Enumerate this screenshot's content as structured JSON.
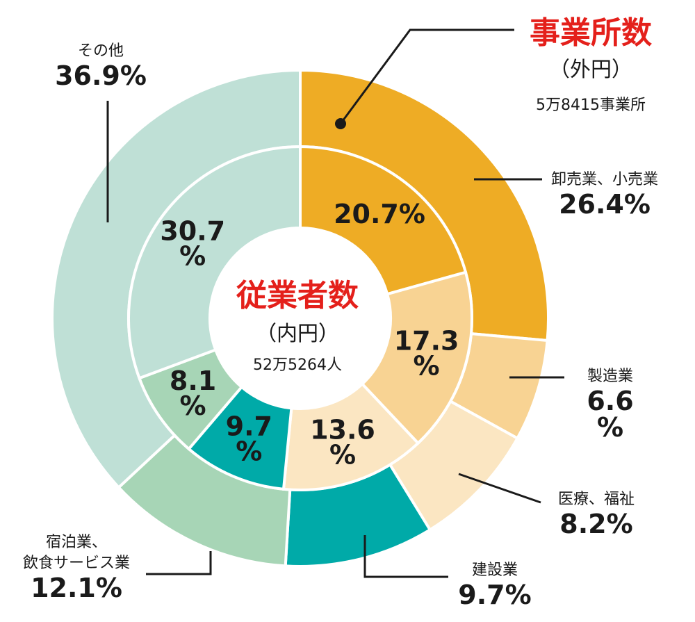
{
  "chart_data": {
    "type": "pie",
    "variant": "nested-donut",
    "outer": {
      "title": "事業所数",
      "subtitle": "（外円）",
      "total": "5万8415事業所",
      "segments": [
        {
          "name": "卸売業、小売業",
          "name_lines": [
            "卸売業、小売業"
          ],
          "value": 26.4,
          "label_lines": [
            "26.4%"
          ],
          "color": "#eeac25"
        },
        {
          "name": "製造業",
          "name_lines": [
            "製造業"
          ],
          "value": 6.6,
          "label_lines": [
            "6.6",
            "%"
          ],
          "color": "#f8d393"
        },
        {
          "name": "医療、福祉",
          "name_lines": [
            "医療、福祉"
          ],
          "value": 8.2,
          "label_lines": [
            "8.2%"
          ],
          "color": "#fbe6c2"
        },
        {
          "name": "建設業",
          "name_lines": [
            "建設業"
          ],
          "value": 9.7,
          "label_lines": [
            "9.7%"
          ],
          "color": "#00aaa8"
        },
        {
          "name": "宿泊業、飲食サービス業",
          "name_lines": [
            "宿泊業、",
            "飲食サービス業"
          ],
          "value": 12.1,
          "label_lines": [
            "12.1%"
          ],
          "color": "#a7d5b6"
        },
        {
          "name": "その他",
          "name_lines": [
            "その他"
          ],
          "value": 36.9,
          "label_lines": [
            "36.9%"
          ],
          "color": "#bfe0d6"
        }
      ]
    },
    "inner": {
      "title": "従業者数",
      "subtitle": "（内円）",
      "total": "52万5264人",
      "segments": [
        {
          "name": "卸売業、小売業",
          "value": 20.7,
          "label_lines": [
            "20.7%"
          ],
          "color": "#eeac25"
        },
        {
          "name": "製造業",
          "value": 17.3,
          "label_lines": [
            "17.3",
            "%"
          ],
          "color": "#f8d393"
        },
        {
          "name": "医療、福祉",
          "value": 13.6,
          "label_lines": [
            "13.6",
            "%"
          ],
          "color": "#fbe6c2"
        },
        {
          "name": "建設業",
          "value": 9.7,
          "label_lines": [
            "9.7",
            "%"
          ],
          "color": "#00aaa8"
        },
        {
          "name": "宿泊業、飲食サービス業",
          "value": 8.1,
          "label_lines": [
            "8.1",
            "%"
          ],
          "color": "#a7d5b6"
        },
        {
          "name": "その他",
          "value": 30.7,
          "label_lines": [
            "30.7",
            "%"
          ],
          "color": "#bfe0d6"
        }
      ]
    }
  }
}
